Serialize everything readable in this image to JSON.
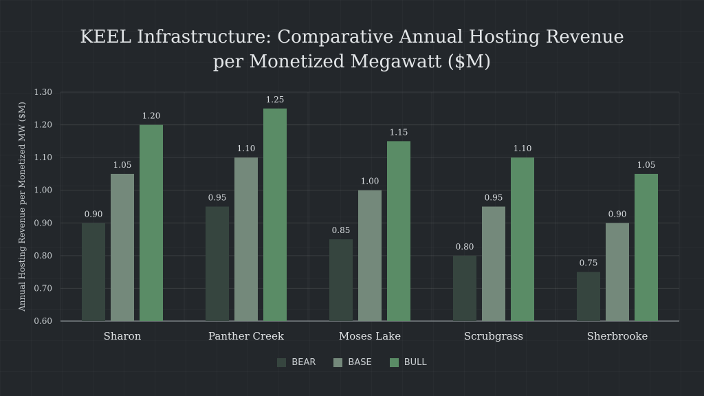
{
  "chart_data": {
    "type": "bar",
    "title_lines": [
      "KEEL Infrastructure: Comparative Annual Hosting Revenue",
      "per Monetized Megawatt ($M)"
    ],
    "xlabel": "",
    "ylabel": "Annual Hosting Revenue per Monetized MW ($M)",
    "ylim": [
      0.6,
      1.3
    ],
    "yticks": [
      "0.60",
      "0.70",
      "0.80",
      "0.90",
      "1.00",
      "1.10",
      "1.20",
      "1.30"
    ],
    "categories": [
      "Sharon",
      "Panther Creek",
      "Moses Lake",
      "Scrubgrass",
      "Sherbrooke"
    ],
    "series": [
      {
        "name": "BEAR",
        "color": "#36453f",
        "values": [
          0.9,
          0.95,
          0.85,
          0.8,
          0.75
        ],
        "labels": [
          "0.90",
          "0.95",
          "0.85",
          "0.80",
          "0.75"
        ]
      },
      {
        "name": "BASE",
        "color": "#74897b",
        "values": [
          1.05,
          1.1,
          1.0,
          0.95,
          0.9
        ],
        "labels": [
          "1.05",
          "1.10",
          "1.00",
          "0.95",
          "0.90"
        ]
      },
      {
        "name": "BULL",
        "color": "#5a8c66",
        "values": [
          1.2,
          1.25,
          1.15,
          1.1,
          1.05
        ],
        "labels": [
          "1.20",
          "1.25",
          "1.15",
          "1.10",
          "1.05"
        ]
      }
    ],
    "grid": true,
    "legend_position": "bottom"
  }
}
